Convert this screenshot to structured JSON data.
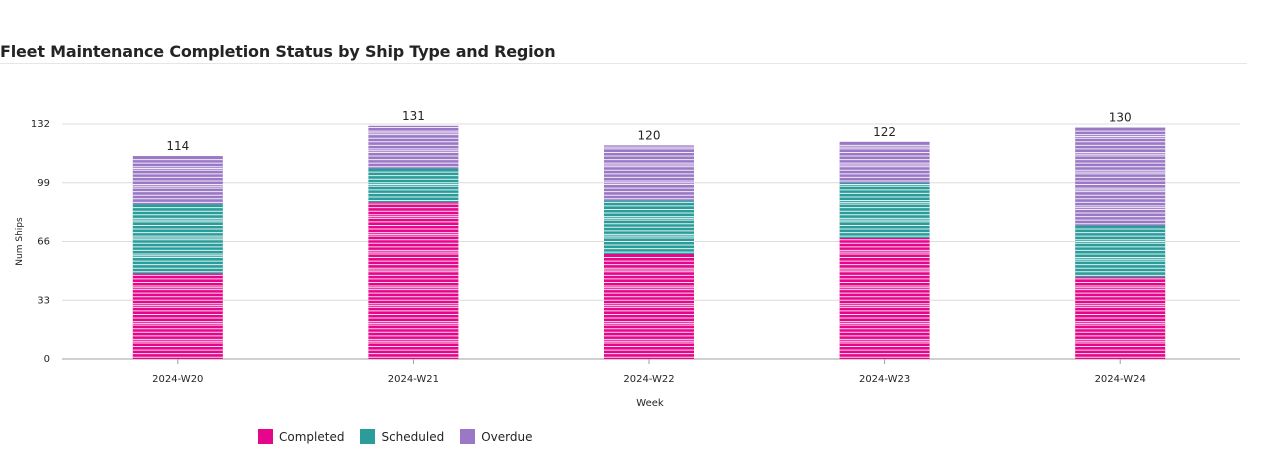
{
  "title": "Fleet Maintenance Completion Status by Ship Type and Region",
  "chart_data": {
    "type": "bar",
    "stacked": true,
    "categories": [
      "2024-W20",
      "2024-W21",
      "2024-W22",
      "2024-W23",
      "2024-W24"
    ],
    "series": [
      {
        "name": "Completed",
        "color": "#E6068C",
        "values": [
          48,
          88,
          59,
          68,
          46
        ]
      },
      {
        "name": "Scheduled",
        "color": "#2A9D9A",
        "values": [
          39,
          19,
          30,
          31,
          29
        ]
      },
      {
        "name": "Overdue",
        "color": "#9B78C6",
        "values": [
          27,
          24,
          31,
          23,
          55
        ]
      }
    ],
    "totals": [
      "114",
      "131",
      "120",
      "122",
      "130"
    ],
    "yticks": [
      "0",
      "33",
      "66",
      "99",
      "132"
    ],
    "ylim": [
      0,
      132
    ],
    "xlabel": "Week",
    "ylabel": "Num Ships",
    "grid": true,
    "legend_position": "bottom"
  }
}
